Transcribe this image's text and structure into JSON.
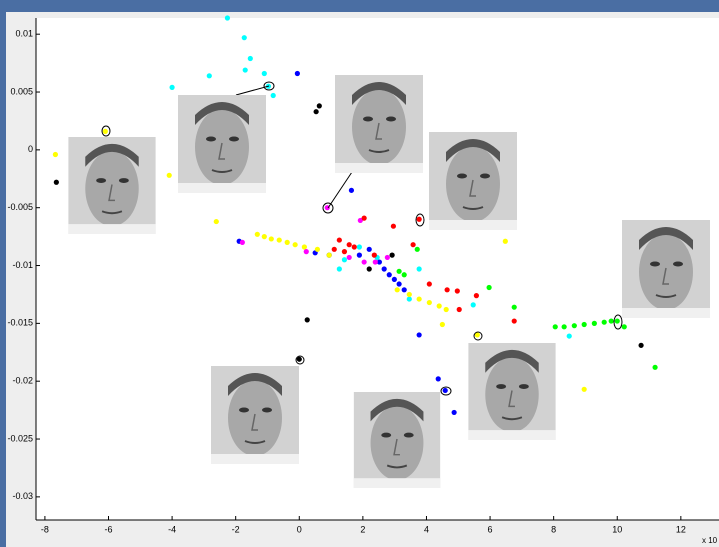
{
  "chart_data": {
    "type": "scatter",
    "exponent_label": "x 10",
    "xlim": [
      -8.28,
      13.2
    ],
    "ylim": [
      -0.032,
      0.0114
    ],
    "xticks": [
      -8,
      -6,
      -4,
      -2,
      0,
      2,
      4,
      6,
      8,
      10,
      12
    ],
    "yticks": [
      0.01,
      0.005,
      0,
      -0.005,
      -0.01,
      -0.015,
      -0.02,
      -0.025,
      -0.03
    ],
    "series": [
      {
        "color": "#00ffff",
        "x": [
          -2.26,
          -1.73,
          -1.54,
          -1.7,
          -1.1,
          -2.83,
          -4.0,
          -0.82,
          -0.97,
          1.42,
          2.45,
          3.46,
          1.26,
          8.49,
          5.47,
          1.89,
          3.77
        ],
        "values": [
          0.0114,
          0.0097,
          0.0079,
          0.0069,
          0.0066,
          0.0064,
          0.0054,
          0.0047,
          0.0055,
          -0.0095,
          -0.0093,
          -0.0129,
          -0.0103,
          -0.0161,
          -0.0134,
          -0.0084,
          -0.0103
        ]
      },
      {
        "color": "#0000ff",
        "x": [
          -0.06,
          1.64,
          -1.89,
          3.77,
          4.37,
          4.59,
          4.87,
          2.2,
          2.52,
          2.83,
          2.99,
          3.14,
          3.3,
          2.67,
          1.89,
          0.94,
          0.5
        ],
        "values": [
          0.0066,
          -0.0035,
          -0.0079,
          -0.016,
          -0.0198,
          -0.0208,
          -0.0227,
          -0.0086,
          -0.0097,
          -0.0108,
          -0.0112,
          -0.0116,
          -0.0121,
          -0.0103,
          -0.0091,
          -0.0091,
          -0.0089
        ]
      },
      {
        "color": "#000000",
        "x": [
          -7.64,
          0.63,
          0.53,
          0.25,
          0,
          10.75,
          2.92,
          2.2
        ],
        "values": [
          -0.0028,
          0.0038,
          0.0033,
          -0.0147,
          -0.0181,
          -0.0169,
          -0.0091,
          -0.0103
        ]
      },
      {
        "color": "#ffff00",
        "x": [
          -7.67,
          -6.1,
          -4.09,
          -2.61,
          -1.32,
          -1.1,
          -0.88,
          -0.63,
          -0.38,
          -0.13,
          0.16,
          0.57,
          0.94,
          3.08,
          3.46,
          3.77,
          4.09,
          4.4,
          4.62,
          4.5,
          5.6,
          6.48,
          8.96
        ],
        "values": [
          -0.0004,
          0.0016,
          -0.0022,
          -0.0062,
          -0.0073,
          -0.0075,
          -0.0077,
          -0.0078,
          -0.008,
          -0.0082,
          -0.0084,
          -0.0086,
          -0.0091,
          -0.0121,
          -0.0125,
          -0.0129,
          -0.0132,
          -0.0135,
          -0.0138,
          -0.0151,
          -0.016,
          -0.0079,
          -0.0207
        ]
      },
      {
        "color": "#ff00ff",
        "x": [
          0.88,
          -1.79,
          1.92,
          0.22,
          1.57,
          2.04,
          2.39,
          2.77
        ],
        "values": [
          -0.005,
          -0.008,
          -0.0061,
          -0.0088,
          -0.0093,
          -0.0097,
          -0.0097,
          -0.0093
        ]
      },
      {
        "color": "#ff0000",
        "x": [
          3.77,
          2.04,
          2.96,
          3.58,
          1.26,
          1.57,
          1.1,
          1.42,
          1.73,
          2.36,
          4.09,
          4.65,
          4.97,
          5.57,
          6.76,
          5.03
        ],
        "values": [
          -0.006,
          -0.0059,
          -0.0066,
          -0.0082,
          -0.0078,
          -0.0082,
          -0.0086,
          -0.0088,
          -0.0084,
          -0.0091,
          -0.0116,
          -0.0121,
          -0.0122,
          -0.0126,
          -0.0148,
          -0.0138
        ]
      },
      {
        "color": "#00ff00",
        "x": [
          3.14,
          3.3,
          3.71,
          5.97,
          6.76,
          8.05,
          8.33,
          8.65,
          8.96,
          9.28,
          9.59,
          9.81,
          10.0,
          10.22,
          11.19
        ],
        "values": [
          -0.0105,
          -0.0108,
          -0.0086,
          -0.0119,
          -0.0136,
          -0.0153,
          -0.0153,
          -0.0152,
          -0.0151,
          -0.015,
          -0.0149,
          -0.0148,
          -0.0148,
          -0.0153,
          -0.0188
        ]
      }
    ]
  }
}
